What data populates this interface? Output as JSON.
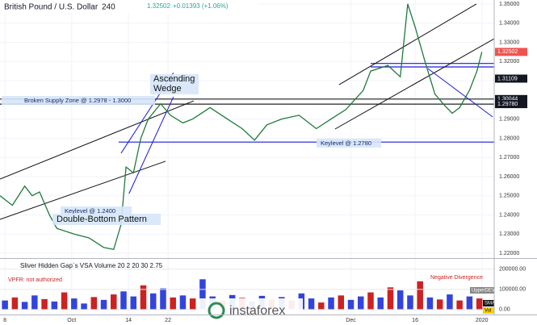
{
  "chart_data": [
    {
      "type": "line",
      "title": "British Pound / U.S. Dollar",
      "interval": "240",
      "last_price": "1.32502",
      "change": "+0.01393 (+1.06%)",
      "x": [
        0,
        2.5,
        5,
        6.5,
        8,
        10,
        11.5,
        15,
        18,
        21,
        23,
        24.5,
        25.5,
        27,
        28.5,
        30,
        32.5,
        34.5,
        37,
        39,
        42.5,
        46,
        49,
        51.5,
        54,
        57,
        60.5,
        64,
        67,
        70,
        73.5,
        75,
        78.5,
        81,
        82.5,
        84,
        86,
        88,
        90,
        91.5,
        93,
        95,
        96.5,
        97.5
      ],
      "series": [
        {
          "color": "#1f7a3a",
          "values": [
            1.25,
            1.245,
            1.255,
            1.25,
            1.252,
            1.24,
            1.233,
            1.23,
            1.228,
            1.223,
            1.222,
            1.235,
            1.265,
            1.262,
            1.28,
            1.29,
            1.298,
            1.292,
            1.288,
            1.29,
            1.296,
            1.29,
            1.285,
            1.279,
            1.287,
            1.29,
            1.292,
            1.285,
            1.29,
            1.295,
            1.305,
            1.315,
            1.318,
            1.312,
            1.35,
            1.338,
            1.32,
            1.303,
            1.297,
            1.293,
            1.296,
            1.305,
            1.315,
            1.325
          ]
        }
      ],
      "xlim": [
        0,
        100
      ],
      "ylim": [
        1.2175,
        1.3521
      ],
      "xticks": [
        {
          "value": 1,
          "label": "8"
        },
        {
          "value": 14.5,
          "label": "Oct"
        },
        {
          "value": 26,
          "label": "14"
        },
        {
          "value": 34,
          "label": "22"
        },
        {
          "value": 71,
          "label": "Dec"
        },
        {
          "value": 84,
          "label": "16"
        },
        {
          "value": 97.5,
          "label": "2020"
        }
      ],
      "yticks": [
        {
          "value": 1.22,
          "label": "1.22000"
        },
        {
          "value": 1.23,
          "label": "1.23000"
        },
        {
          "value": 1.24,
          "label": "1.24000"
        },
        {
          "value": 1.25,
          "label": "1.25000"
        },
        {
          "value": 1.26,
          "label": "1.26000"
        },
        {
          "value": 1.27,
          "label": "1.27000"
        },
        {
          "value": 1.28,
          "label": "1.28000"
        },
        {
          "value": 1.29,
          "label": "1.29000"
        },
        {
          "value": 1.3,
          "label": "1.30000"
        },
        {
          "value": 1.31,
          "label": "1.31000"
        },
        {
          "value": 1.32,
          "label": "1.32000"
        },
        {
          "value": 1.33,
          "label": "1.33000"
        },
        {
          "value": 1.34,
          "label": "1.34000"
        },
        {
          "value": 1.35,
          "label": "1.35000"
        }
      ],
      "price_labels": [
        {
          "value": 1.32502,
          "label": "1.32502",
          "color": "#ef5350"
        },
        {
          "value": 1.31109,
          "label": "1.31109",
          "color": "#131722"
        },
        {
          "value": 1.30044,
          "label": "1.30044",
          "color": "#131722"
        },
        {
          "value": 1.2978,
          "label": "1.29780",
          "color": "#131722"
        }
      ],
      "levels": [
        {
          "value": 1.278,
          "from": 24,
          "color": "#1a1adb"
        },
        {
          "value": 1.30044,
          "from": 0,
          "color": "#222222"
        },
        {
          "value": 1.2978,
          "from": 0,
          "color": "#222222"
        },
        {
          "value": 1.319,
          "from": 75,
          "color": "#1a1adb"
        },
        {
          "value": 1.3172,
          "from": 75,
          "color": "#1a1adb"
        }
      ],
      "trendlines": [
        {
          "x": [
            0,
            33.5
          ],
          "y": [
            1.2377,
            1.268
          ],
          "color": "#111111"
        },
        {
          "x": [
            0,
            39.2
          ],
          "y": [
            1.2587,
            1.2995
          ],
          "color": "#111111"
        },
        {
          "x": [
            68.6,
            96.4
          ],
          "y": [
            1.3079,
            1.35
          ],
          "color": "#111111"
        },
        {
          "x": [
            67.8,
            100
          ],
          "y": [
            1.2848,
            1.3319
          ],
          "color": "#111111"
        },
        {
          "x": [
            86.6,
            99.7
          ],
          "y": [
            1.3163,
            1.2911
          ],
          "color": "#1a1adb"
        },
        {
          "x": [
            24.5,
            35.1
          ],
          "y": [
            1.2722,
            1.3142
          ],
          "color": "#1a1adb"
        },
        {
          "x": [
            26.1,
            35.1
          ],
          "y": [
            1.2511,
            1.3016
          ],
          "color": "#1a1adb"
        }
      ],
      "annotations": {
        "wedge_1": "Ascending",
        "wedge_2": "Wedge",
        "supply": "Broken Supply Zone @ 1.2978 - 1.3000",
        "key_high": "Keylevel @ 1.2780",
        "key_low": "Keylevel @ 1.2400",
        "double_bottom": "Double-Bottom Pattern"
      }
    },
    {
      "type": "bar",
      "title": "Sliver Hidden Gap`s VSA Volume 20 2 20 30 2.75",
      "note": "VPFR: not authorized",
      "divergence": "Negative Divergence",
      "axis_labels": {
        "upper": "UpperDEV",
        "sma": "SMA",
        "vol": "Vol"
      },
      "watermark": "instaforex",
      "x": [
        1,
        3,
        5,
        7,
        9,
        11,
        13,
        15,
        17,
        19,
        21,
        23,
        25,
        27,
        29,
        31,
        33,
        35,
        37,
        39,
        41,
        43,
        45,
        47,
        49,
        51,
        53,
        55,
        57,
        59,
        61,
        63,
        65,
        67,
        69,
        71,
        73,
        75,
        77,
        79,
        81,
        83,
        85,
        87,
        89,
        91,
        93,
        95,
        97
      ],
      "values": [
        45000,
        60000,
        38000,
        70000,
        52000,
        40000,
        85000,
        55000,
        30000,
        62000,
        48000,
        75000,
        90000,
        65000,
        120000,
        80000,
        105000,
        60000,
        70000,
        55000,
        150000,
        65000,
        45000,
        72000,
        58000,
        40000,
        68000,
        50000,
        62000,
        45000,
        80000,
        55000,
        35000,
        60000,
        70000,
        48000,
        65000,
        85000,
        60000,
        110000,
        95000,
        70000,
        140000,
        60000,
        50000,
        75000,
        45000,
        65000,
        55000
      ],
      "colors": [
        "#3344dd",
        "#cc2222",
        "#3344dd",
        "#3344dd",
        "#cc2222",
        "#3344dd",
        "#cc2222",
        "#3344dd",
        "#3344dd",
        "#cc2222",
        "#3344dd",
        "#cc2222",
        "#3344dd",
        "#3344dd",
        "#cc2222",
        "#3344dd",
        "#3344dd",
        "#cc2222",
        "#3344dd",
        "#cc2222",
        "#3344dd",
        "#3344dd",
        "#cc2222",
        "#3344dd",
        "#cc2222",
        "#3344dd",
        "#3344dd",
        "#cc2222",
        "#3344dd",
        "#cc2222",
        "#3344dd",
        "#3344dd",
        "#cc2222",
        "#3344dd",
        "#cc2222",
        "#3344dd",
        "#3344dd",
        "#cc2222",
        "#3344dd",
        "#cc2222",
        "#3344dd",
        "#3344dd",
        "#cc2222",
        "#3344dd",
        "#cc2222",
        "#3344dd",
        "#cc2222",
        "#3344dd",
        "#cc2222"
      ],
      "xlim": [
        0,
        100
      ],
      "ylim": [
        -24500,
        251000
      ],
      "yticks": [
        {
          "value": 0,
          "label": "0.00"
        },
        {
          "value": 100000,
          "label": "100000.00"
        },
        {
          "value": 200000,
          "label": "200000.00"
        }
      ]
    }
  ]
}
